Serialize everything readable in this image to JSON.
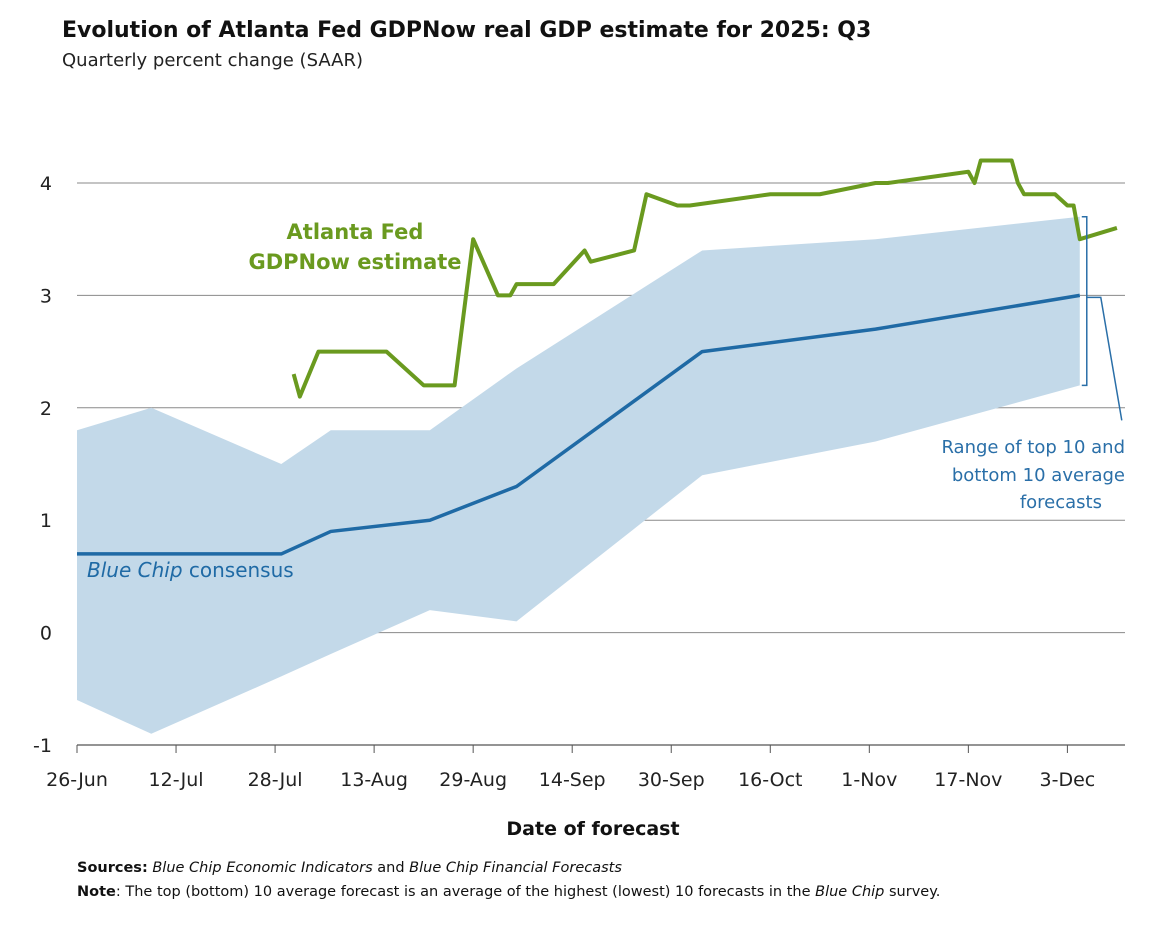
{
  "chart_data": {
    "type": "line",
    "title": "Evolution of Atlanta Fed GDPNow real GDP estimate for 2025: Q3",
    "subtitle": "Quarterly percent change (SAAR)",
    "xlabel": "Date of forecast",
    "ylabel": "",
    "ylim": [
      -1,
      4
    ],
    "yticks": [
      "-1",
      "0",
      "1",
      "2",
      "3",
      "4"
    ],
    "xlim": [
      "2025-06-26",
      "2025-12-12"
    ],
    "xticks": [
      {
        "date": "2025-06-26",
        "label": "26-Jun"
      },
      {
        "date": "2025-07-12",
        "label": "12-Jul"
      },
      {
        "date": "2025-07-28",
        "label": "28-Jul"
      },
      {
        "date": "2025-08-13",
        "label": "13-Aug"
      },
      {
        "date": "2025-08-29",
        "label": "29-Aug"
      },
      {
        "date": "2025-09-14",
        "label": "14-Sep"
      },
      {
        "date": "2025-09-30",
        "label": "30-Sep"
      },
      {
        "date": "2025-10-16",
        "label": "16-Oct"
      },
      {
        "date": "2025-11-01",
        "label": "1-Nov"
      },
      {
        "date": "2025-11-17",
        "label": "17-Nov"
      },
      {
        "date": "2025-12-03",
        "label": "3-Dec"
      }
    ],
    "grid": "horizontal",
    "colors": {
      "gdpnow": "#6a9a1f",
      "consensus": "#1f6aa5",
      "range": "#c3d9e9",
      "annotation": "#2a6fa8"
    },
    "series": [
      {
        "name": "Atlanta Fed GDPNow estimate",
        "points": [
          [
            "2025-07-31",
            2.3
          ],
          [
            "2025-08-01",
            2.1
          ],
          [
            "2025-08-04",
            2.5
          ],
          [
            "2025-08-15",
            2.5
          ],
          [
            "2025-08-21",
            2.2
          ],
          [
            "2025-08-26",
            2.2
          ],
          [
            "2025-08-29",
            3.5
          ],
          [
            "2025-09-02",
            3.0
          ],
          [
            "2025-09-04",
            3.0
          ],
          [
            "2025-09-05",
            3.1
          ],
          [
            "2025-09-11",
            3.1
          ],
          [
            "2025-09-16",
            3.4
          ],
          [
            "2025-09-17",
            3.3
          ],
          [
            "2025-09-24",
            3.4
          ],
          [
            "2025-09-26",
            3.9
          ],
          [
            "2025-10-01",
            3.8
          ],
          [
            "2025-10-03",
            3.8
          ],
          [
            "2025-10-16",
            3.9
          ],
          [
            "2025-10-24",
            3.9
          ],
          [
            "2025-11-02",
            4.0
          ],
          [
            "2025-11-04",
            4.0
          ],
          [
            "2025-11-17",
            4.1
          ],
          [
            "2025-11-18",
            4.0
          ],
          [
            "2025-11-19",
            4.2
          ],
          [
            "2025-11-24",
            4.2
          ],
          [
            "2025-11-25",
            4.0
          ],
          [
            "2025-11-26",
            3.9
          ],
          [
            "2025-12-01",
            3.9
          ],
          [
            "2025-12-03",
            3.8
          ],
          [
            "2025-12-04",
            3.8
          ],
          [
            "2025-12-05",
            3.5
          ],
          [
            "2025-12-11",
            3.6
          ]
        ]
      },
      {
        "name": "Blue Chip consensus",
        "points": [
          [
            "2025-06-26",
            0.7
          ],
          [
            "2025-07-29",
            0.7
          ],
          [
            "2025-08-06",
            0.9
          ],
          [
            "2025-08-22",
            1.0
          ],
          [
            "2025-09-05",
            1.3
          ],
          [
            "2025-10-05",
            2.5
          ],
          [
            "2025-11-02",
            2.7
          ],
          [
            "2025-12-05",
            3.0
          ]
        ]
      }
    ],
    "range_band": {
      "name": "Range of top 10 and bottom 10 average forecasts",
      "dates": [
        "2025-06-26",
        "2025-07-08",
        "2025-07-29",
        "2025-08-06",
        "2025-08-22",
        "2025-09-05",
        "2025-10-05",
        "2025-11-02",
        "2025-12-05"
      ],
      "top": [
        1.8,
        2.0,
        1.5,
        1.8,
        1.8,
        2.35,
        3.4,
        3.5,
        3.7
      ],
      "bottom": [
        -0.6,
        -0.9,
        -0.39,
        -0.19,
        0.2,
        0.1,
        1.4,
        1.7,
        2.2
      ]
    },
    "annotations": {
      "gdpnow_line1": "Atlanta Fed",
      "gdpnow_line2": "GDPNow estimate",
      "consensus_italic": "Blue Chip",
      "consensus_rest": " consensus",
      "range_line1": "Range of top 10 and",
      "range_line2": "bottom 10 average",
      "range_line3": "forecasts"
    }
  },
  "footer": {
    "sources_label": "Sources:",
    "sources_italic1": "Blue Chip Economic Indicators",
    "sources_and": " and ",
    "sources_italic2": "Blue Chip Financial Forecasts",
    "note_label": "Note",
    "note_text": ": The top (bottom) 10 average forecast is an average of the highest (lowest) 10 forecasts in the ",
    "note_italic": "Blue Chip",
    "note_end": " survey."
  }
}
